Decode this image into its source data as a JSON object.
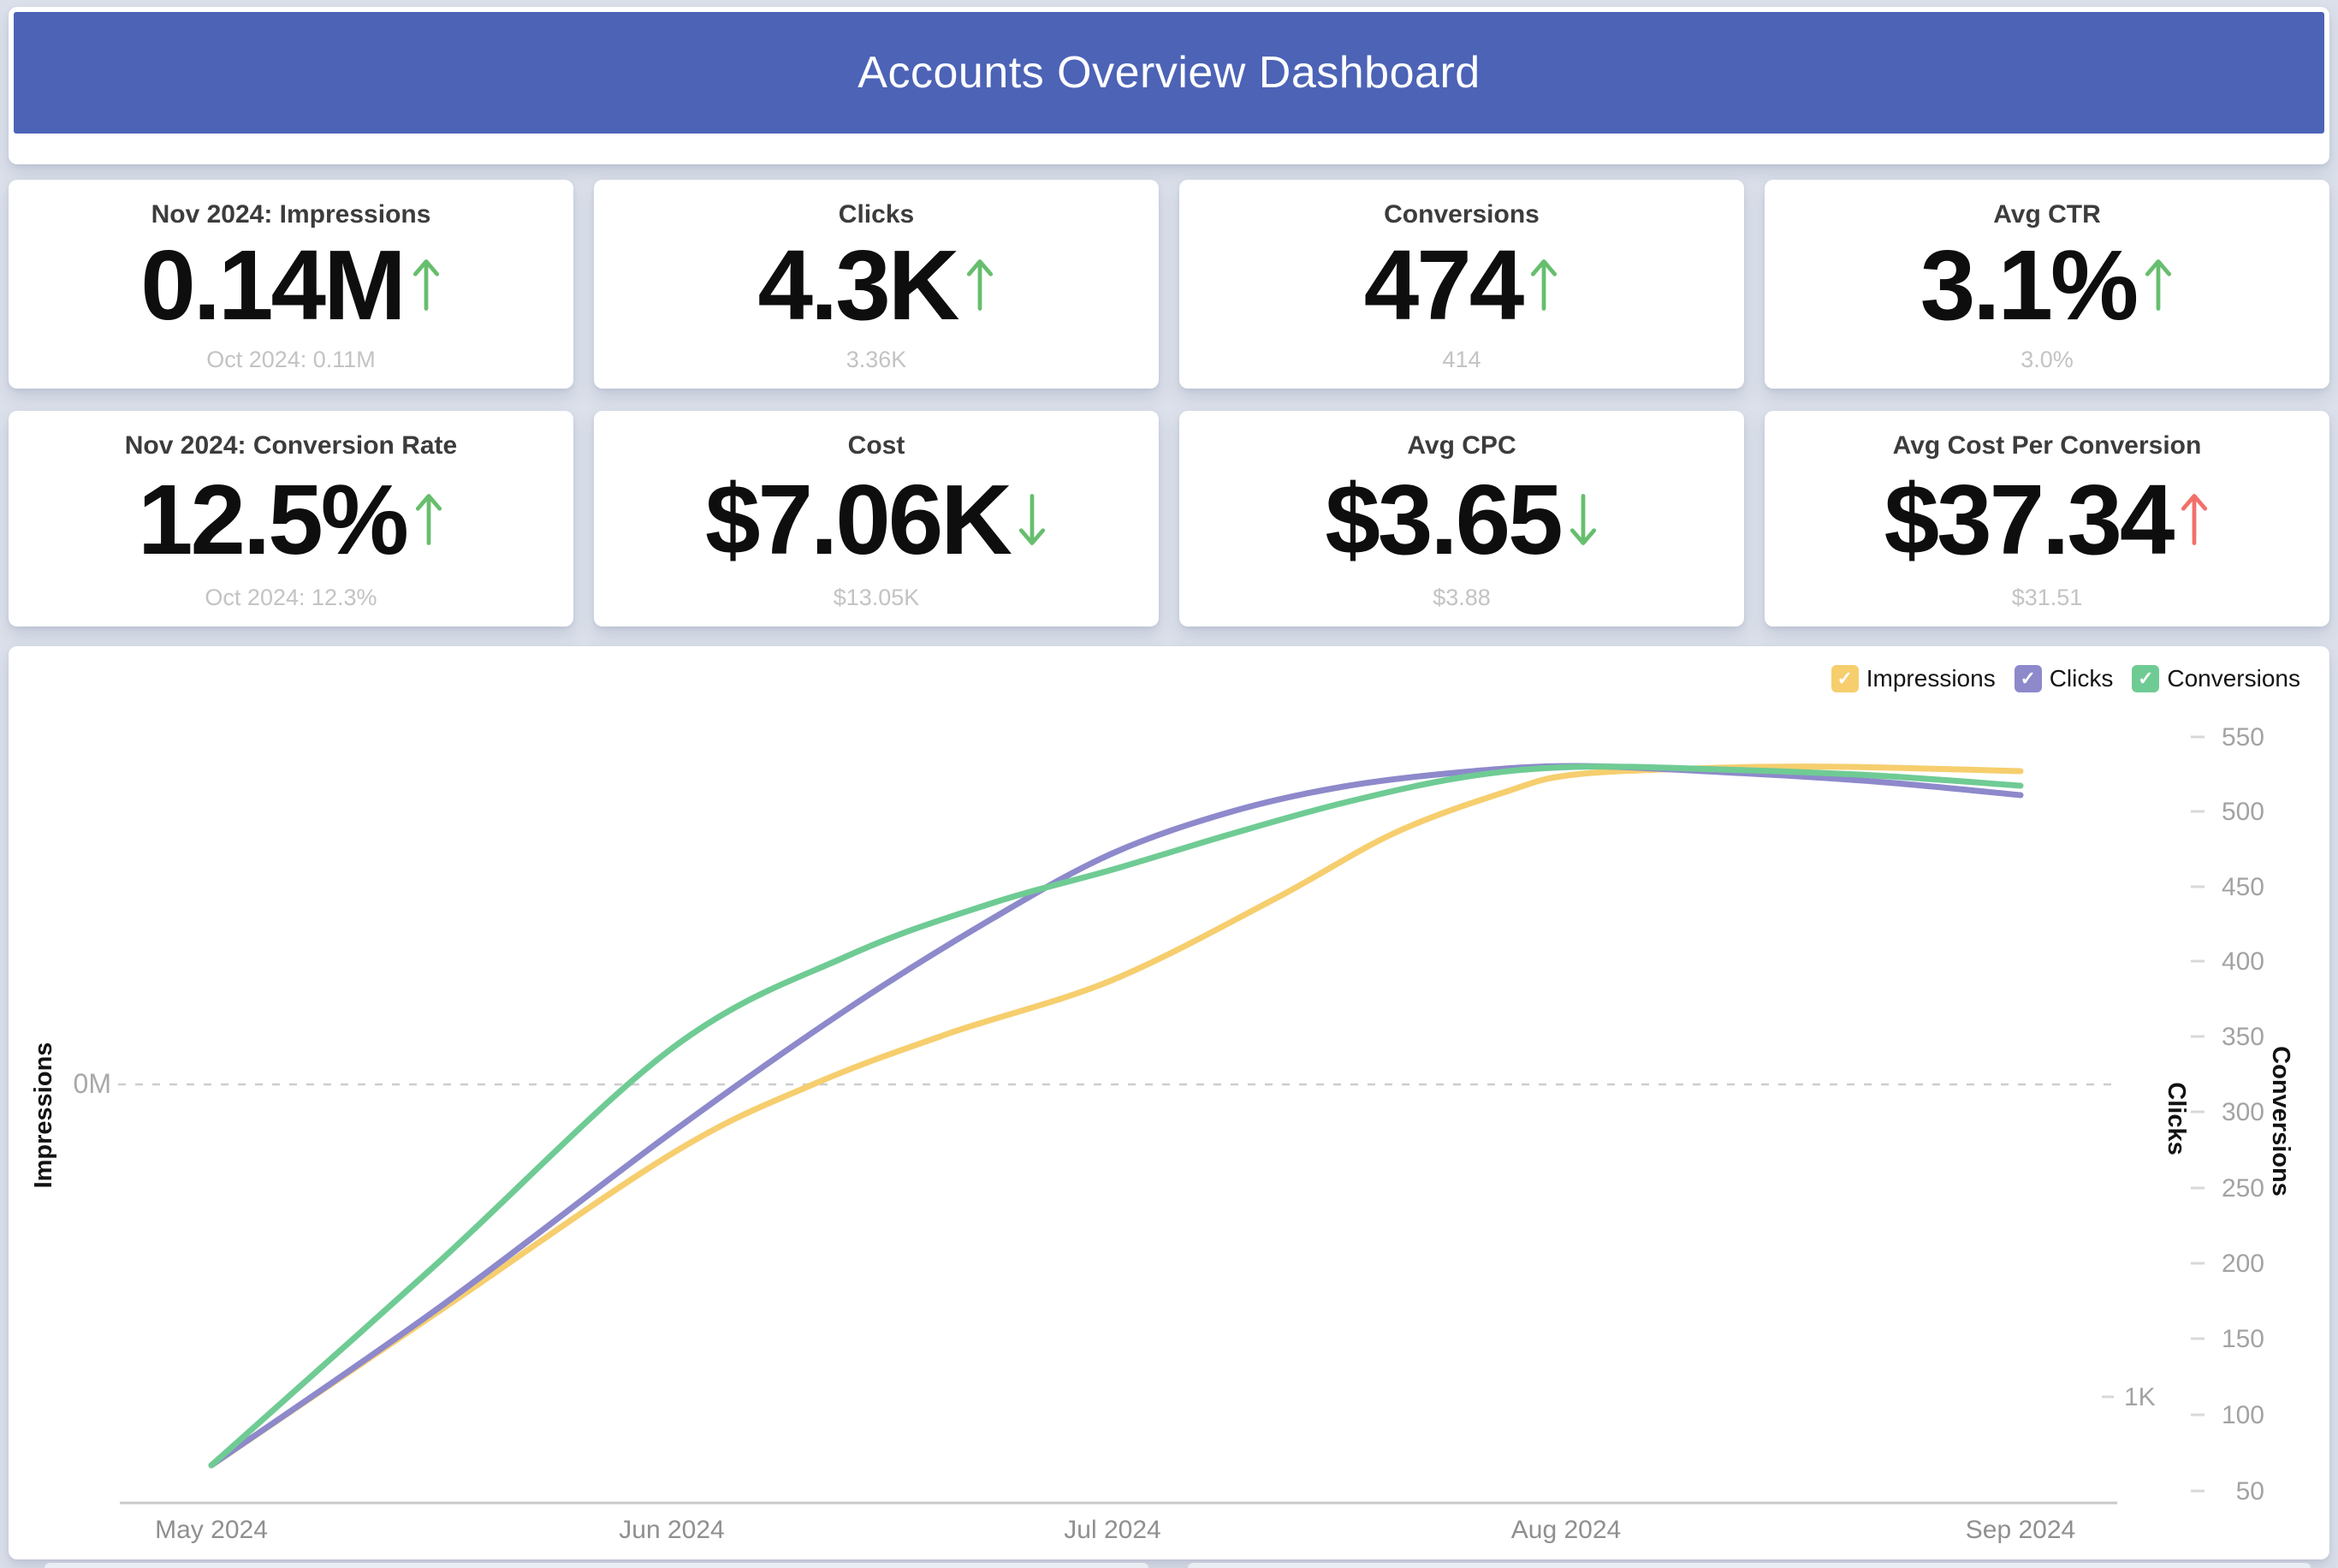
{
  "header": {
    "title": "Accounts Overview Dashboard"
  },
  "kpi": [
    {
      "label": "Nov 2024: Impressions",
      "value": "0.14M",
      "trend": "up",
      "status": "positive",
      "previous": "Oct 2024: 0.11M"
    },
    {
      "label": "Clicks",
      "value": "4.3K",
      "trend": "up",
      "status": "positive",
      "previous": "3.36K"
    },
    {
      "label": "Conversions",
      "value": "474",
      "trend": "up",
      "status": "positive",
      "previous": "414"
    },
    {
      "label": "Avg CTR",
      "value": "3.1%",
      "trend": "up",
      "status": "positive",
      "previous": "3.0%"
    },
    {
      "label": "Nov 2024: Conversion Rate",
      "value": "12.5%",
      "trend": "up",
      "status": "positive",
      "previous": "Oct 2024: 12.3%"
    },
    {
      "label": "Cost",
      "value": "$7.06K",
      "trend": "down",
      "status": "positive",
      "previous": "$13.05K"
    },
    {
      "label": "Avg CPC",
      "value": "$3.65",
      "trend": "down",
      "status": "positive",
      "previous": "$3.88"
    },
    {
      "label": "Avg Cost Per Conversion",
      "value": "$37.34",
      "trend": "up",
      "status": "negative",
      "previous": "$31.51"
    }
  ],
  "icons": {
    "check": "✓"
  },
  "colors": {
    "header_blue": "#4C63B6",
    "impressions_yellow": "#F6CE6E",
    "clicks_purple": "#8D89CB",
    "conversions_green": "#6FCB94",
    "trend_up_green": "#67BE6E",
    "trend_up_red": "#F2706B",
    "page_background": "#DBE0EA"
  },
  "chart_data": {
    "type": "line",
    "x": [
      "May 2024",
      "Jun 2024",
      "Jul 2024",
      "Aug 2024",
      "Sep 2024"
    ],
    "series": [
      {
        "name": "Impressions",
        "axis_title": "Impressions",
        "y_axis": "left",
        "color": "#F6CE6E",
        "axis_visible_tick": "0M",
        "values_est_conversions_scale": [
          67,
          275,
          390,
          529,
          530
        ]
      },
      {
        "name": "Clicks",
        "axis_title": "Clicks",
        "y_axis": "right",
        "color": "#8D89CB",
        "axis_visible_tick": "1K",
        "values_est_conversions_scale": [
          67,
          289,
          475,
          533,
          514
        ]
      },
      {
        "name": "Conversions",
        "axis_title": "Conversions",
        "y_axis": "far-right",
        "color": "#6FCB94",
        "values": [
          67,
          345,
          464,
          532,
          520
        ]
      }
    ],
    "right_axis_ticks": [
      "550",
      "500",
      "450",
      "400",
      "350",
      "300",
      "250",
      "200",
      "150",
      "100",
      "50"
    ],
    "right_axis_range": [
      50,
      550
    ],
    "left_axis_tick": "0M",
    "clicks_axis_tick": "1K",
    "legend": {
      "position": "top-right",
      "checked": [
        true,
        true,
        true
      ]
    },
    "gridline": "single dashed horizontal line at left-axis 0M",
    "units_note": "Impressions and Clicks are drawn on their own hidden scales; their listed values are approximate positions expressed on the Conversions axis"
  }
}
